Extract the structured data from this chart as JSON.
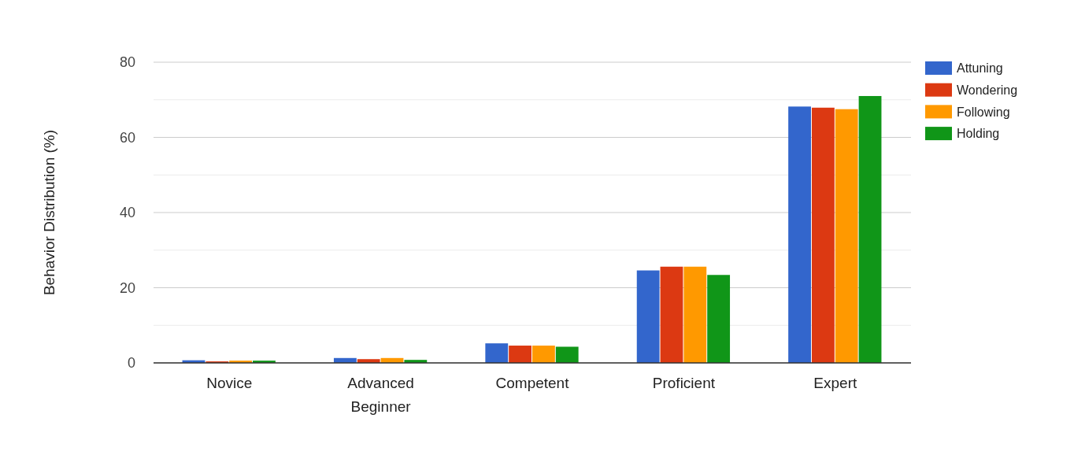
{
  "chart_data": {
    "type": "bar",
    "ylabel": "Behavior Distribution (%)",
    "categories": [
      "Novice",
      "Advanced\nBeginner",
      "Competent",
      "Proficient",
      "Expert"
    ],
    "series": [
      {
        "name": "Attuning",
        "color": "#3366cc",
        "values": [
          0.7,
          1.3,
          5.2,
          24.6,
          68.2
        ]
      },
      {
        "name": "Wondering",
        "color": "#dc3912",
        "values": [
          0.4,
          1.0,
          4.6,
          25.6,
          67.9
        ]
      },
      {
        "name": "Following",
        "color": "#ff9900",
        "values": [
          0.6,
          1.3,
          4.6,
          25.6,
          67.5
        ]
      },
      {
        "name": "Holding",
        "color": "#109618",
        "values": [
          0.6,
          0.8,
          4.3,
          23.4,
          71.0
        ]
      }
    ],
    "ylim": [
      0,
      80
    ],
    "yticks": [
      0,
      {
        "value": 10,
        "label": null
      },
      20,
      {
        "value": 30,
        "label": null
      },
      40,
      {
        "value": 50,
        "label": null
      },
      60,
      {
        "value": 70,
        "label": null
      },
      80
    ],
    "grid": "y",
    "legend": "right"
  }
}
